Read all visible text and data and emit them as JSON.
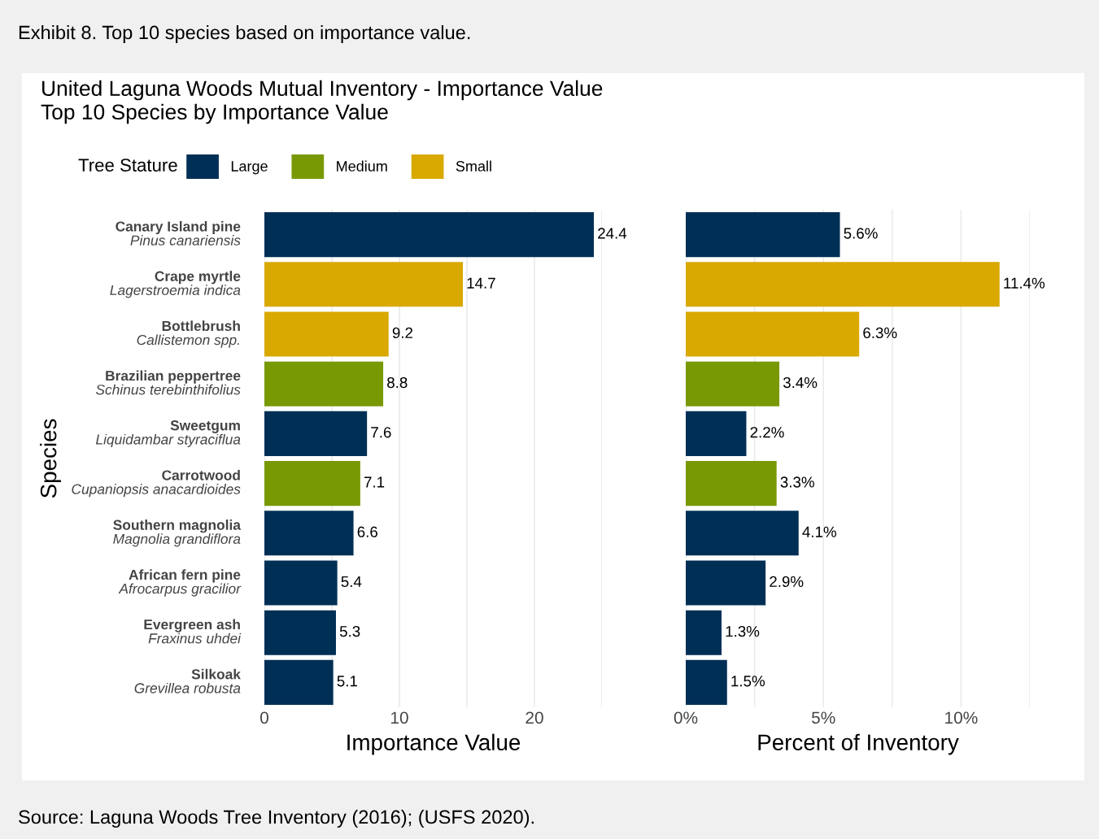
{
  "chart_data": [
    {
      "type": "bar",
      "orientation": "horizontal",
      "title": "United Laguna Woods Mutual Inventory - Importance Value",
      "subtitle": "Top 10 Species by Importance Value",
      "xlabel": "Importance Value",
      "ylabel": "Species",
      "legend_title": "Tree Stature",
      "legend": "top left",
      "categories": [
        "Canary Island pine\nPinus canariensis",
        "Crape myrtle\nLagerstroemia indica",
        "Bottlebrush\nCallistemon spp.",
        "Brazilian peppertree\nSchinus terebinthifolius",
        "Sweetgum\nLiquidambar styraciflua",
        "Carrotwood\nCupaniopsis anacardioides",
        "Southern magnolia\nMagnolia grandiflora",
        "African fern pine\nAfrocarpus gracilior",
        "Evergreen ash\nFraxinus uhdei",
        "Silkoak\nGrevillea robusta"
      ],
      "series": [
        {
          "name": "Large",
          "color": "#002f56",
          "values": [
            24.4,
            null,
            null,
            null,
            7.6,
            null,
            6.6,
            5.4,
            5.3,
            5.1
          ]
        },
        {
          "name": "Medium",
          "color": "#789904",
          "values": [
            null,
            null,
            null,
            8.8,
            null,
            7.1,
            null,
            null,
            null,
            null
          ]
        },
        {
          "name": "Small",
          "color": "#d9a900",
          "values": [
            null,
            14.7,
            9.2,
            null,
            null,
            null,
            null,
            null,
            null,
            null
          ]
        }
      ],
      "data_labels": true,
      "xlim": [
        0,
        25
      ],
      "xticks": [
        0,
        {
          "value": 5,
          "label": null
        },
        10,
        {
          "value": 15,
          "label": null
        },
        20,
        {
          "value": 25,
          "label": null
        }
      ],
      "grid": "x",
      "annotations": [
        "Exhibit 8. Top 10 species based on importance value.",
        "Source: Laguna Woods Tree Inventory (2016); (USFS 2020)."
      ]
    },
    {
      "type": "bar",
      "orientation": "horizontal",
      "xlabel": "Percent of Inventory",
      "legend": false,
      "categories": [
        null,
        null,
        null,
        null,
        null,
        null,
        null,
        null,
        null,
        null
      ],
      "series": [
        {
          "color": "#002f56",
          "values": [
            5.6,
            null,
            null,
            null,
            2.2,
            null,
            4.1,
            2.9,
            1.3,
            1.5
          ],
          "value_labels": [
            "5.6%",
            null,
            null,
            null,
            "2.2%",
            null,
            "4.1%",
            "2.9%",
            "1.3%",
            "1.5%"
          ]
        },
        {
          "color": "#789904",
          "values": [
            null,
            null,
            null,
            3.4,
            null,
            3.3,
            null,
            null,
            null,
            null
          ],
          "value_labels": [
            null,
            null,
            null,
            "3.4%",
            null,
            "3.3%",
            null,
            null,
            null,
            null
          ]
        },
        {
          "color": "#d9a900",
          "values": [
            null,
            11.4,
            6.3,
            null,
            null,
            null,
            null,
            null,
            null,
            null
          ],
          "value_labels": [
            null,
            "11.4%",
            "6.3%",
            null,
            null,
            null,
            null,
            null,
            null,
            null
          ]
        }
      ],
      "xlim": [
        0,
        12.5
      ],
      "xticks": [
        {
          "value": 0,
          "label": "0%"
        },
        {
          "value": 2.5,
          "label": null
        },
        {
          "value": 5,
          "label": "5%"
        },
        {
          "value": 7.5,
          "label": null
        },
        {
          "value": 10,
          "label": "10%"
        },
        {
          "value": 12.5,
          "label": null
        }
      ],
      "grid": "x"
    }
  ]
}
